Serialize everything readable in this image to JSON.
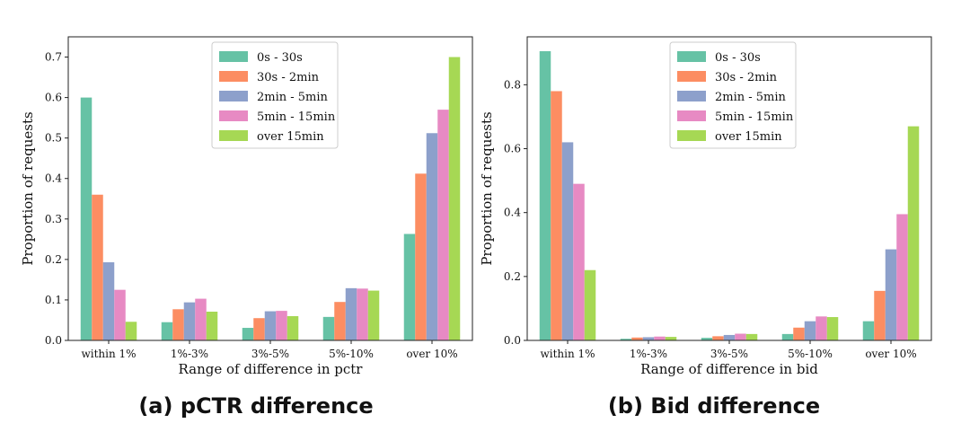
{
  "chart_data": [
    {
      "type": "bar",
      "id": "pctr",
      "caption": "(a) pCTR difference",
      "xlabel": "Range of difference in pctr",
      "ylabel": "Proportion of requests",
      "ylim": [
        0,
        0.75
      ],
      "yticks": [
        "0.0",
        "0.1",
        "0.2",
        "0.3",
        "0.4",
        "0.5",
        "0.6",
        "0.7"
      ],
      "categories": [
        "within 1%",
        "1%-3%",
        "3%-5%",
        "5%-10%",
        "over 10%"
      ],
      "legend_position": "top-center",
      "series": [
        {
          "name": "0s - 30s",
          "color": "#66c2a5",
          "values": [
            0.6,
            0.045,
            0.031,
            0.058,
            0.263
          ]
        },
        {
          "name": "30s - 2min",
          "color": "#fc8d62",
          "values": [
            0.36,
            0.077,
            0.055,
            0.095,
            0.412
          ]
        },
        {
          "name": "2min - 5min",
          "color": "#8da0cb",
          "values": [
            0.193,
            0.094,
            0.072,
            0.129,
            0.512
          ]
        },
        {
          "name": "5min - 15min",
          "color": "#e78ac3",
          "values": [
            0.125,
            0.103,
            0.073,
            0.128,
            0.57
          ]
        },
        {
          "name": "over 15min",
          "color": "#a6d854",
          "values": [
            0.046,
            0.071,
            0.06,
            0.123,
            0.7
          ]
        }
      ]
    },
    {
      "type": "bar",
      "id": "bid",
      "caption": "(b) Bid difference",
      "xlabel": "Range of difference in bid",
      "ylabel": "Proportion of requests",
      "ylim": [
        0,
        0.95
      ],
      "yticks": [
        "0.0",
        "0.2",
        "0.4",
        "0.6",
        "0.8"
      ],
      "categories": [
        "within 1%",
        "1%-3%",
        "3%-5%",
        "5%-10%",
        "over 10%"
      ],
      "legend_position": "top-center",
      "series": [
        {
          "name": "0s - 30s",
          "color": "#66c2a5",
          "values": [
            0.905,
            0.005,
            0.008,
            0.02,
            0.06
          ]
        },
        {
          "name": "30s - 2min",
          "color": "#fc8d62",
          "values": [
            0.78,
            0.009,
            0.013,
            0.04,
            0.155
          ]
        },
        {
          "name": "2min - 5min",
          "color": "#8da0cb",
          "values": [
            0.62,
            0.01,
            0.017,
            0.06,
            0.285
          ]
        },
        {
          "name": "5min - 15min",
          "color": "#e78ac3",
          "values": [
            0.49,
            0.012,
            0.021,
            0.075,
            0.395
          ]
        },
        {
          "name": "over 15min",
          "color": "#a6d854",
          "values": [
            0.22,
            0.011,
            0.02,
            0.073,
            0.67
          ]
        }
      ]
    }
  ]
}
